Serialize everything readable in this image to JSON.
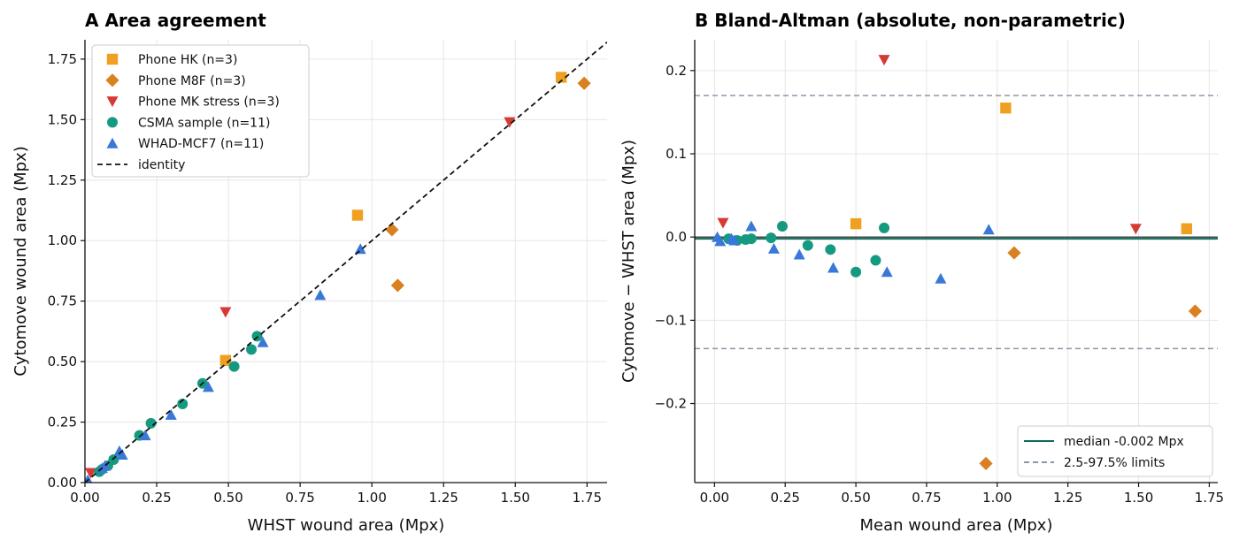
{
  "chart_data": [
    {
      "type": "scatter",
      "panel": "A",
      "title": "A  Area agreement",
      "xlabel": "WHST wound area (Mpx)",
      "ylabel": "Cytomove wound area (Mpx)",
      "xlim": [
        0,
        1.82
      ],
      "ylim": [
        0,
        1.83
      ],
      "xticks": [
        0,
        0.25,
        0.5,
        0.75,
        1.0,
        1.25,
        1.5,
        1.75
      ],
      "xtick_labels": [
        "0.00",
        "0.25",
        "0.50",
        "0.75",
        "1.00",
        "1.25",
        "1.50",
        "1.75"
      ],
      "yticks": [
        0,
        0.25,
        0.5,
        0.75,
        1.0,
        1.25,
        1.5,
        1.75
      ],
      "ytick_labels": [
        "0.00",
        "0.25",
        "0.50",
        "0.75",
        "1.00",
        "1.25",
        "1.50",
        "1.75"
      ],
      "grid": true,
      "legend_position": "top-left",
      "series": [
        {
          "name": "Phone HK (n=3)",
          "marker": "square",
          "color": "#F0A020",
          "points": [
            [
              0.49,
              0.505
            ],
            [
              0.95,
              1.105
            ],
            [
              1.66,
              1.675
            ]
          ]
        },
        {
          "name": "Phone M8F (n=3)",
          "marker": "diamond",
          "color": "#D98020",
          "points": [
            [
              1.07,
              1.045
            ],
            [
              1.09,
              0.815
            ],
            [
              1.74,
              1.65
            ]
          ]
        },
        {
          "name": "Phone MK stress (n=3)",
          "marker": "triangle-down",
          "color": "#D63A35",
          "points": [
            [
              0.02,
              0.04
            ],
            [
              0.49,
              0.705
            ],
            [
              1.48,
              1.49
            ]
          ]
        },
        {
          "name": "CSMA sample (n=11)",
          "marker": "circle",
          "color": "#159A80",
          "points": [
            [
              0.05,
              0.045
            ],
            [
              0.08,
              0.07
            ],
            [
              0.1,
              0.095
            ],
            [
              0.19,
              0.195
            ],
            [
              0.23,
              0.245
            ],
            [
              0.34,
              0.325
            ],
            [
              0.41,
              0.41
            ],
            [
              0.52,
              0.48
            ],
            [
              0.58,
              0.55
            ],
            [
              0.6,
              0.605
            ],
            [
              0.06,
              0.055
            ]
          ]
        },
        {
          "name": "WHAD-MCF7 (n=11)",
          "marker": "triangle-up",
          "color": "#3A78D8",
          "points": [
            [
              0.01,
              0.01
            ],
            [
              0.06,
              0.06
            ],
            [
              0.12,
              0.13
            ],
            [
              0.21,
              0.195
            ],
            [
              0.3,
              0.28
            ],
            [
              0.43,
              0.395
            ],
            [
              0.62,
              0.58
            ],
            [
              0.82,
              0.775
            ],
            [
              0.96,
              0.965
            ],
            [
              0.07,
              0.07
            ],
            [
              0.13,
              0.115
            ]
          ]
        },
        {
          "name": "identity",
          "type": "line",
          "style": "dashed",
          "color": "#111111",
          "points": [
            [
              0,
              0
            ],
            [
              1.82,
              1.82
            ]
          ]
        }
      ]
    },
    {
      "type": "scatter",
      "panel": "B",
      "title": "B  Bland-Altman (absolute, non-parametric)",
      "xlabel": "Mean wound area (Mpx)",
      "ylabel": "Cytomove − WHST area (Mpx)",
      "xlim": [
        -0.07,
        1.78
      ],
      "ylim": [
        -0.295,
        0.237
      ],
      "xticks": [
        0,
        0.25,
        0.5,
        0.75,
        1.0,
        1.25,
        1.5,
        1.75
      ],
      "xtick_labels": [
        "0.00",
        "0.25",
        "0.50",
        "0.75",
        "1.00",
        "1.25",
        "1.50",
        "1.75"
      ],
      "yticks": [
        -0.2,
        -0.1,
        0.0,
        0.1,
        0.2
      ],
      "ytick_labels": [
        "−0.2",
        "−0.1",
        "0.0",
        "0.1",
        "0.2"
      ],
      "grid": true,
      "legend_position": "bottom-right",
      "median": -0.002,
      "limits": [
        0.17,
        -0.134
      ],
      "series": [
        {
          "name": "Phone HK (n=3)",
          "marker": "square",
          "color": "#F0A020",
          "points": [
            [
              0.5,
              0.016
            ],
            [
              1.03,
              0.155
            ],
            [
              1.67,
              0.01
            ]
          ]
        },
        {
          "name": "Phone M8F (n=3)",
          "marker": "diamond",
          "color": "#D98020",
          "points": [
            [
              0.96,
              -0.272
            ],
            [
              1.06,
              -0.019
            ],
            [
              1.7,
              -0.089
            ]
          ]
        },
        {
          "name": "Phone MK stress (n=3)",
          "marker": "triangle-down",
          "color": "#D63A35",
          "points": [
            [
              0.03,
              0.017
            ],
            [
              0.6,
              0.213
            ],
            [
              1.49,
              0.01
            ]
          ]
        },
        {
          "name": "CSMA sample (n=11)",
          "marker": "circle",
          "color": "#159A80",
          "points": [
            [
              0.05,
              -0.002
            ],
            [
              0.08,
              -0.004
            ],
            [
              0.11,
              -0.003
            ],
            [
              0.13,
              -0.002
            ],
            [
              0.2,
              -0.001
            ],
            [
              0.24,
              0.013
            ],
            [
              0.33,
              -0.01
            ],
            [
              0.41,
              -0.015
            ],
            [
              0.5,
              -0.042
            ],
            [
              0.57,
              -0.028
            ],
            [
              0.6,
              0.011
            ]
          ]
        },
        {
          "name": "WHAD-MCF7 (n=11)",
          "marker": "triangle-up",
          "color": "#3A78D8",
          "points": [
            [
              0.01,
              0.0
            ],
            [
              0.02,
              -0.005
            ],
            [
              0.06,
              -0.002
            ],
            [
              0.07,
              -0.004
            ],
            [
              0.13,
              0.013
            ],
            [
              0.21,
              -0.014
            ],
            [
              0.3,
              -0.021
            ],
            [
              0.42,
              -0.037
            ],
            [
              0.61,
              -0.042
            ],
            [
              0.8,
              -0.05
            ],
            [
              0.97,
              0.009
            ]
          ]
        }
      ],
      "legend": [
        {
          "label": "median -0.002 Mpx",
          "style": "solid",
          "color": "#0F6B5A"
        },
        {
          "label": "2.5-97.5% limits",
          "style": "dashed",
          "color": "#8C98A8"
        }
      ]
    }
  ]
}
